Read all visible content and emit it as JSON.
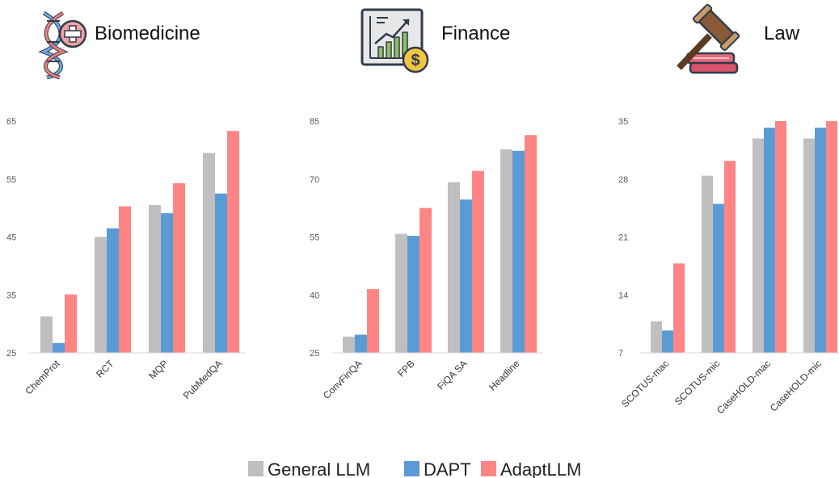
{
  "domains": [
    {
      "title": "Biomedicine",
      "icon": "dna-medical-cross-icon"
    },
    {
      "title": "Finance",
      "icon": "chart-growth-dollar-icon"
    },
    {
      "title": "Law",
      "icon": "gavel-books-icon"
    }
  ],
  "legend": {
    "placement": "bottom-center",
    "items": [
      {
        "label": "General LLM",
        "color": "#BFBFBF"
      },
      {
        "label": "DAPT",
        "color": "#5B9BD5"
      },
      {
        "label": "AdaptLLM",
        "color": "#FF8585"
      }
    ]
  },
  "chart_data": [
    {
      "type": "bar",
      "categories": [
        "ChemProt",
        "RCT",
        "MQP",
        "PubMedQA"
      ],
      "ylim": [
        25,
        65
      ],
      "yticks": [
        25,
        35,
        45,
        55,
        65
      ],
      "series": [
        {
          "name": "General LLM",
          "values": [
            31.3,
            45.0,
            50.5,
            59.5
          ]
        },
        {
          "name": "DAPT",
          "values": [
            26.7,
            46.5,
            49.1,
            52.5
          ]
        },
        {
          "name": "AdaptLLM",
          "values": [
            35.1,
            50.3,
            54.3,
            63.3
          ]
        }
      ],
      "grid": false
    },
    {
      "type": "bar",
      "categories": [
        "ConvFinQA",
        "FPB",
        "FiQA SA",
        "Headline"
      ],
      "ylim": [
        25,
        85
      ],
      "yticks": [
        25,
        40,
        55,
        70,
        85
      ],
      "series": [
        {
          "name": "General LLM",
          "values": [
            29.2,
            55.8,
            69.2,
            77.7
          ]
        },
        {
          "name": "DAPT",
          "values": [
            29.7,
            55.3,
            64.7,
            77.3
          ]
        },
        {
          "name": "AdaptLLM",
          "values": [
            41.5,
            62.5,
            72.1,
            81.4
          ]
        }
      ],
      "grid": false
    },
    {
      "type": "bar",
      "categories": [
        "SCOTUS-mac",
        "SCOTUS-mic",
        "CaseHOLD-mac",
        "CaseHOLD-mic"
      ],
      "ylim": [
        7,
        35
      ],
      "yticks": [
        7,
        14,
        21,
        28,
        35
      ],
      "series": [
        {
          "name": "General LLM",
          "values": [
            10.8,
            28.4,
            32.9,
            32.9
          ]
        },
        {
          "name": "DAPT",
          "values": [
            9.7,
            25.0,
            34.2,
            34.2
          ]
        },
        {
          "name": "AdaptLLM",
          "values": [
            17.8,
            30.2,
            35.0,
            35.0
          ]
        }
      ],
      "grid": false
    }
  ]
}
